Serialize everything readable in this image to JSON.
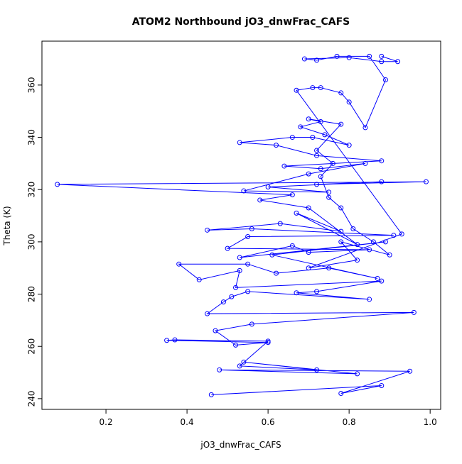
{
  "chart_data": {
    "type": "line",
    "title": "ATOM2 Northbound jO3_dnwFrac_CAFS",
    "x_label": "jO3_dnwFrac_CAFS",
    "y_label": "Theta (K)",
    "x": [
      0.46,
      0.88,
      0.78,
      0.95,
      0.48,
      0.82,
      0.54,
      0.72,
      0.53,
      0.6,
      0.37,
      0.35,
      0.6,
      0.52,
      0.47,
      0.56,
      0.96,
      0.45,
      0.49,
      0.51,
      0.55,
      0.85,
      0.67,
      0.72,
      0.88,
      0.52,
      0.53,
      0.43,
      0.38,
      0.55,
      0.62,
      0.75,
      0.87,
      0.61,
      0.89,
      0.53,
      0.66,
      0.7,
      0.85,
      0.5,
      0.55,
      0.91,
      0.56,
      0.45,
      0.63,
      0.78,
      0.67,
      0.82,
      0.7,
      0.58,
      0.66,
      0.08,
      0.99,
      0.72,
      0.88,
      0.6,
      0.75,
      0.54,
      0.7,
      0.84,
      0.73,
      0.64,
      0.88,
      0.72,
      0.62,
      0.53,
      0.66,
      0.71,
      0.8,
      0.74,
      0.68,
      0.73,
      0.7,
      0.78,
      0.72,
      0.76,
      0.73,
      0.75,
      0.78,
      0.81,
      0.86,
      0.9,
      0.78,
      0.82,
      0.7,
      0.93,
      0.67,
      0.71,
      0.73,
      0.78,
      0.8,
      0.84,
      0.89,
      0.85,
      0.77,
      0.72,
      0.69,
      0.8,
      0.88,
      0.92,
      0.88
    ],
    "series": [
      {
        "color": "#0000ff",
        "values": [
          241.5,
          245,
          242,
          250.5,
          251,
          249.5,
          254,
          251,
          252.5,
          262,
          262.5,
          262.3,
          261.5,
          260.5,
          266,
          268.5,
          273,
          272.5,
          277,
          279,
          281,
          278,
          280.5,
          281,
          285,
          282.5,
          289,
          285.5,
          291.5,
          291.5,
          288,
          290,
          286,
          295,
          300,
          294,
          298.5,
          296,
          297,
          297.5,
          302,
          302.5,
          305,
          304.5,
          307,
          304,
          311,
          299,
          313,
          316,
          318,
          322,
          323,
          322,
          323,
          321,
          319,
          319.5,
          326,
          330,
          328,
          329,
          331,
          333,
          337,
          338,
          340,
          340,
          337,
          341,
          344,
          346,
          347,
          345,
          335,
          330,
          325,
          317,
          313,
          305,
          300,
          295,
          300,
          293,
          290,
          303,
          358,
          359,
          359,
          357,
          353.5,
          343.7,
          362,
          371,
          371,
          369.5,
          370,
          370.5,
          369,
          369,
          371
        ]
      }
    ],
    "xlim": [
      0.042,
      1.026
    ],
    "ylim": [
      235.9,
      376.8
    ],
    "xticks": [
      0.2,
      0.4,
      0.6,
      0.8,
      {
        "value": 1.0,
        "label": "1.0"
      }
    ],
    "yticks": [
      240,
      260,
      280,
      300,
      320,
      340,
      360
    ]
  }
}
